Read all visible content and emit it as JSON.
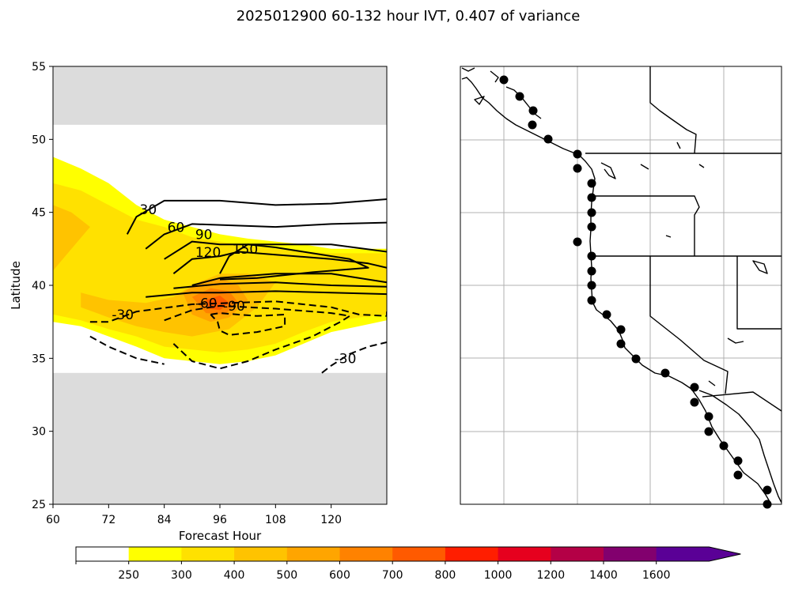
{
  "figure_title": "2025012900 60-132 hour IVT, 0.407 of variance",
  "chart_data": [
    {
      "type": "contour",
      "title": "",
      "xlabel": "Forecast Hour",
      "ylabel": "Latitude",
      "xlim": [
        60,
        132
      ],
      "ylim": [
        25,
        55
      ],
      "xticks": [
        60,
        72,
        84,
        96,
        108,
        120
      ],
      "yticks": [
        25,
        30,
        35,
        40,
        45,
        50,
        55
      ],
      "masked_regions_lat": [
        [
          51,
          55
        ],
        [
          25,
          34
        ]
      ],
      "fill_color_masked": "#dcdcdc",
      "filled_ivt_bands": [
        {
          "level": 250,
          "color": "#ffff00",
          "polygon": [
            [
              60,
              48.8
            ],
            [
              66,
              48
            ],
            [
              72,
              47
            ],
            [
              78,
              45.5
            ],
            [
              84,
              44.5
            ],
            [
              90,
              44
            ],
            [
              96,
              43.5
            ],
            [
              102,
              43.2
            ],
            [
              108,
              43
            ],
            [
              114,
              42.8
            ],
            [
              120,
              42.5
            ],
            [
              132,
              42.5
            ],
            [
              132,
              37.6
            ],
            [
              126,
              37.2
            ],
            [
              120,
              36.8
            ],
            [
              114,
              36
            ],
            [
              108,
              35.2
            ],
            [
              102,
              34.8
            ],
            [
              96,
              34.6
            ],
            [
              90,
              34.8
            ],
            [
              84,
              35
            ],
            [
              78,
              35.8
            ],
            [
              72,
              36.5
            ],
            [
              66,
              37.2
            ],
            [
              60,
              37.5
            ]
          ]
        },
        {
          "level": 300,
          "color": "#ffe100",
          "polygon": [
            [
              60,
              47
            ],
            [
              66,
              46.5
            ],
            [
              72,
              45.5
            ],
            [
              78,
              44.5
            ],
            [
              84,
              44
            ],
            [
              90,
              43.3
            ],
            [
              96,
              43
            ],
            [
              102,
              42.7
            ],
            [
              108,
              42.5
            ],
            [
              114,
              42.3
            ],
            [
              120,
              42.2
            ],
            [
              132,
              42.2
            ],
            [
              132,
              38
            ],
            [
              126,
              37.8
            ],
            [
              120,
              37.5
            ],
            [
              114,
              36.8
            ],
            [
              108,
              36
            ],
            [
              102,
              35.6
            ],
            [
              96,
              35.4
            ],
            [
              90,
              35.6
            ],
            [
              84,
              35.8
            ],
            [
              78,
              36.5
            ],
            [
              72,
              37
            ],
            [
              66,
              37.6
            ],
            [
              60,
              38
            ]
          ]
        },
        {
          "level": 400,
          "color": "#ffc300",
          "polygon": [
            [
              60,
              45.5
            ],
            [
              64,
              45
            ],
            [
              68,
              44
            ],
            [
              64,
              42.5
            ],
            [
              60,
              41
            ],
            [
              60,
              39
            ]
          ]
        },
        {
          "level": 400,
          "color": "#ffc300",
          "polygon": [
            [
              66,
              39.5
            ],
            [
              72,
              39
            ],
            [
              80,
              38.8
            ],
            [
              86,
              39.2
            ],
            [
              90,
              40
            ],
            [
              96,
              40.8
            ],
            [
              102,
              40.8
            ],
            [
              108,
              40.2
            ],
            [
              104,
              38.5
            ],
            [
              98,
              37
            ],
            [
              90,
              36.5
            ],
            [
              84,
              36.8
            ],
            [
              78,
              37.2
            ],
            [
              72,
              37.8
            ],
            [
              66,
              38.5
            ]
          ]
        },
        {
          "level": 500,
          "color": "#ffa500",
          "polygon": [
            [
              88,
              39.5
            ],
            [
              92,
              40.3
            ],
            [
              96,
              40.5
            ],
            [
              100,
              40
            ],
            [
              102,
              39
            ],
            [
              98,
              37.8
            ],
            [
              94,
              37.5
            ],
            [
              90,
              38
            ]
          ]
        },
        {
          "level": 600,
          "color": "#ff8200",
          "polygon": [
            [
              90,
              39.2
            ],
            [
              94,
              39.8
            ],
            [
              98,
              39.6
            ],
            [
              100,
              38.8
            ],
            [
              97,
              38
            ],
            [
              93,
              38.1
            ]
          ]
        },
        {
          "level": 700,
          "color": "#ff5a00",
          "polygon": [
            [
              93,
              39
            ],
            [
              96,
              39.3
            ],
            [
              98,
              38.8
            ],
            [
              96,
              38.3
            ],
            [
              93.5,
              38.4
            ]
          ]
        }
      ],
      "contours": [
        {
          "label": "30",
          "style": "solid",
          "points": [
            [
              76,
              43.5
            ],
            [
              78,
              44.7
            ],
            [
              84,
              45.8
            ],
            [
              96,
              45.8
            ],
            [
              108,
              45.5
            ],
            [
              120,
              45.6
            ],
            [
              132,
              45.9
            ]
          ]
        },
        {
          "label": "60",
          "style": "solid",
          "points": [
            [
              80,
              42.5
            ],
            [
              84,
              43.5
            ],
            [
              90,
              44.2
            ],
            [
              108,
              44
            ],
            [
              120,
              44.2
            ],
            [
              132,
              44.3
            ]
          ]
        },
        {
          "label": "90",
          "style": "solid",
          "points": [
            [
              84,
              41.8
            ],
            [
              90,
              43
            ],
            [
              96,
              42.8
            ],
            [
              102,
              42.8
            ],
            [
              108,
              42.8
            ],
            [
              120,
              42.8
            ],
            [
              132,
              42.3
            ]
          ]
        },
        {
          "label": "120",
          "style": "solid",
          "points": [
            [
              86,
              40.8
            ],
            [
              90,
              41.8
            ],
            [
              96,
              42
            ],
            [
              100,
              42.3
            ],
            [
              108,
              42.1
            ],
            [
              120,
              41.8
            ],
            [
              128,
              41.5
            ],
            [
              132,
              41.2
            ]
          ]
        },
        {
          "label": "150",
          "style": "solid",
          "points": [
            [
              96,
              40.8
            ],
            [
              98,
              42
            ],
            [
              102,
              42.8
            ],
            [
              108,
              42.6
            ],
            [
              116,
              42.2
            ],
            [
              124,
              41.8
            ],
            [
              128,
              41.2
            ],
            [
              116,
              40.9
            ],
            [
              104,
              40.5
            ],
            [
              96,
              40.4
            ]
          ]
        },
        {
          "label": "",
          "style": "solid",
          "points": [
            [
              90,
              40
            ],
            [
              96,
              40.5
            ],
            [
              108,
              40.8
            ],
            [
              120,
              40.8
            ],
            [
              132,
              40.2
            ]
          ]
        },
        {
          "label": "",
          "style": "solid",
          "points": [
            [
              86,
              39.8
            ],
            [
              96,
              40.1
            ],
            [
              108,
              40.2
            ],
            [
              120,
              40
            ],
            [
              132,
              39.9
            ]
          ]
        },
        {
          "label": "",
          "style": "solid",
          "points": [
            [
              80,
              39.2
            ],
            [
              90,
              39.5
            ],
            [
              96,
              39.5
            ],
            [
              108,
              39.6
            ],
            [
              120,
              39.5
            ],
            [
              132,
              39.4
            ]
          ]
        },
        {
          "label": "-30",
          "style": "dashed",
          "points": [
            [
              68,
              37.5
            ],
            [
              72,
              37.5
            ],
            [
              78,
              38.2
            ],
            [
              90,
              38.7
            ],
            [
              108,
              38.9
            ],
            [
              120,
              38.5
            ],
            [
              126,
              38
            ],
            [
              132,
              37.9
            ],
            [
              132,
              38.2
            ]
          ]
        },
        {
          "label": "",
          "style": "dashed",
          "points": [
            [
              68,
              36.5
            ],
            [
              72,
              35.8
            ],
            [
              78,
              35
            ],
            [
              84,
              34.6
            ]
          ]
        },
        {
          "label": "-60",
          "style": "dashed",
          "points": [
            [
              84,
              37.6
            ],
            [
              90,
              38.3
            ],
            [
              96,
              38.6
            ],
            [
              108,
              38.4
            ],
            [
              120,
              38.1
            ],
            [
              124,
              37.9
            ],
            [
              122,
              37.5
            ],
            [
              116,
              36.5
            ],
            [
              108,
              35.6
            ],
            [
              102,
              34.8
            ],
            [
              96,
              34.3
            ],
            [
              90,
              34.8
            ],
            [
              86,
              36
            ]
          ]
        },
        {
          "label": "-90",
          "style": "dashed",
          "points": [
            [
              94,
              38
            ],
            [
              96,
              38.1
            ],
            [
              104,
              37.9
            ],
            [
              110,
              38
            ],
            [
              110,
              37.2
            ],
            [
              104,
              36.8
            ],
            [
              98,
              36.6
            ],
            [
              96,
              36.9
            ],
            [
              95.5,
              37.5
            ],
            [
              94,
              38
            ]
          ]
        },
        {
          "label": "-30",
          "style": "dashed",
          "points": [
            [
              118,
              34
            ],
            [
              120,
              34.5
            ],
            [
              124,
              35.3
            ],
            [
              128,
              35.8
            ],
            [
              132,
              36.1
            ]
          ]
        }
      ]
    },
    {
      "type": "map",
      "region": "US West Coast",
      "graticule": true,
      "station_markers": 30,
      "marker_color": "#000000"
    }
  ],
  "colorbar": {
    "bounds": [
      250,
      300,
      400,
      500,
      600,
      700,
      800,
      1000,
      1200,
      1400,
      1600
    ],
    "tick_labels": [
      "250",
      "300",
      "400",
      "500",
      "600",
      "700",
      "800",
      "1000",
      "1200",
      "1400",
      "1600"
    ],
    "colors": [
      "#ffffff",
      "#ffff00",
      "#ffe100",
      "#ffc300",
      "#ffa500",
      "#ff8200",
      "#ff5a00",
      "#ff1e00",
      "#e6001e",
      "#b40046",
      "#82006e",
      "#5a0096"
    ],
    "extend": "max"
  }
}
